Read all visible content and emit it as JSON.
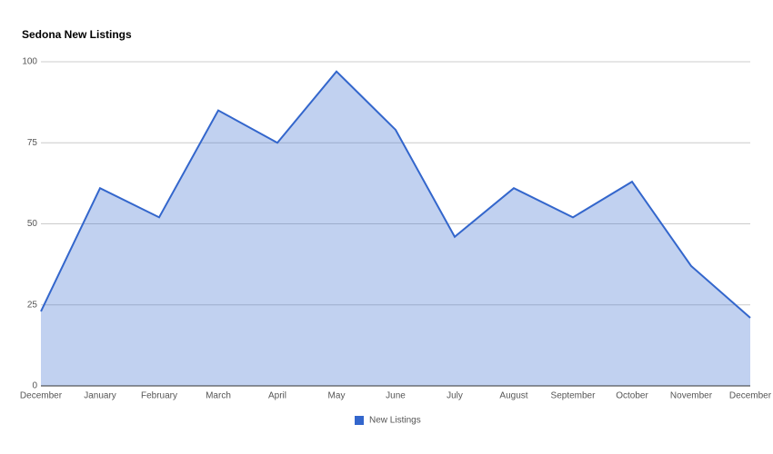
{
  "chart_data": {
    "type": "area",
    "title": "Sedona New Listings",
    "categories": [
      "December",
      "January",
      "February",
      "March",
      "April",
      "May",
      "June",
      "July",
      "August",
      "September",
      "October",
      "November",
      "December"
    ],
    "series": [
      {
        "name": "New Listings",
        "color": "#3366cc",
        "values": [
          23,
          61,
          52,
          85,
          75,
          97,
          79,
          46,
          61,
          52,
          63,
          37,
          21
        ]
      }
    ],
    "ylim": [
      0,
      100
    ],
    "yticks": [
      0,
      25,
      50,
      75,
      100
    ],
    "grid": true,
    "legend": "bottom"
  }
}
